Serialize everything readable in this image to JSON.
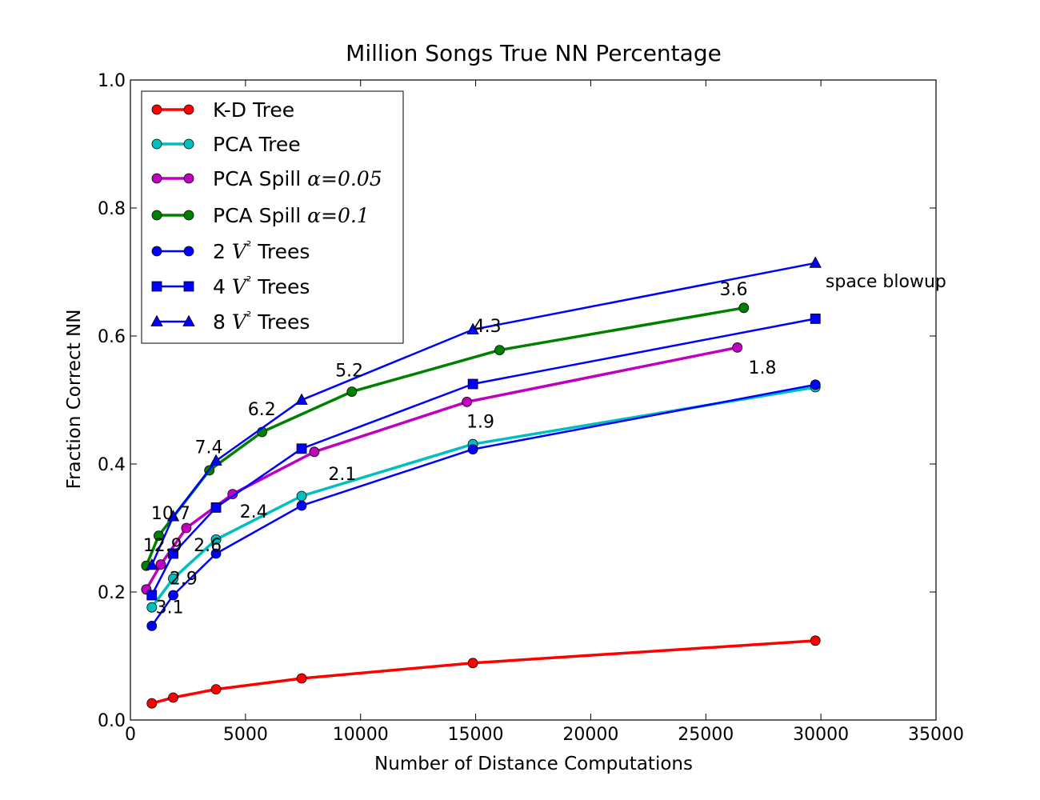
{
  "chart_data": {
    "type": "line",
    "title": "Million Songs True NN Percentage",
    "xlabel": "Number of Distance Computations",
    "ylabel": "Fraction Correct NN",
    "xlim": [
      0,
      35000
    ],
    "ylim": [
      0.0,
      1.0
    ],
    "xticks": [
      0,
      5000,
      10000,
      15000,
      20000,
      25000,
      30000,
      35000
    ],
    "xtick_labels": [
      "0",
      "5000",
      "10000",
      "15000",
      "20000",
      "25000",
      "30000",
      "35000"
    ],
    "yticks": [
      0.0,
      0.2,
      0.4,
      0.6,
      0.8,
      1.0
    ],
    "ytick_labels": [
      "0.0",
      "0.2",
      "0.4",
      "0.6",
      "0.8",
      "1.0"
    ],
    "grid": false,
    "legend_position": "upper-left",
    "series": [
      {
        "name": "K-D Tree",
        "label_parts": [
          "K-D Tree"
        ],
        "color": "#ff0000",
        "marker": "circle",
        "linewidth": 3.5,
        "x": [
          930,
          1860,
          3720,
          7440,
          14880,
          29760
        ],
        "y": [
          0.026,
          0.035,
          0.048,
          0.065,
          0.089,
          0.124
        ]
      },
      {
        "name": "PCA Tree",
        "label_parts": [
          "PCA Tree"
        ],
        "color": "#00bfbf",
        "marker": "circle",
        "linewidth": 3.5,
        "x": [
          930,
          1860,
          3720,
          7440,
          14880,
          29760
        ],
        "y": [
          0.176,
          0.221,
          0.282,
          0.35,
          0.431,
          0.52
        ]
      },
      {
        "name": "PCA Spill α=0.05",
        "label_parts": [
          "PCA Spill ",
          "α",
          "=0.05"
        ],
        "color": "#bf00bf",
        "marker": "circle",
        "linewidth": 3.5,
        "x": [
          690,
          1320,
          2430,
          4440,
          7990,
          14620,
          26370
        ],
        "y": [
          0.204,
          0.243,
          0.3,
          0.353,
          0.419,
          0.497,
          0.582
        ]
      },
      {
        "name": "PCA Spill α=0.1",
        "label_parts": [
          "PCA Spill ",
          "α",
          "=0.1"
        ],
        "color": "#008000",
        "marker": "circle",
        "linewidth": 3.5,
        "x": [
          690,
          1230,
          3430,
          5720,
          9620,
          16040,
          26650
        ],
        "y": [
          0.241,
          0.288,
          0.39,
          0.45,
          0.513,
          0.578,
          0.644
        ]
      },
      {
        "name": "2 V² Trees",
        "label_parts": [
          "2 ",
          "V",
          "²",
          "  Trees"
        ],
        "color": "#0000ff",
        "marker": "circle",
        "linewidth": 2.5,
        "x": [
          930,
          1860,
          3720,
          7440,
          14880,
          29760
        ],
        "y": [
          0.147,
          0.195,
          0.26,
          0.335,
          0.423,
          0.524
        ]
      },
      {
        "name": "4 V² Trees",
        "label_parts": [
          "4 ",
          "V",
          "²",
          "  Trees"
        ],
        "color": "#0000ff",
        "marker": "square",
        "linewidth": 2.5,
        "x": [
          930,
          1860,
          3720,
          7440,
          14880,
          29760
        ],
        "y": [
          0.195,
          0.26,
          0.332,
          0.424,
          0.525,
          0.627
        ]
      },
      {
        "name": "8 V² Trees",
        "label_parts": [
          "8 ",
          "V",
          "²",
          "  Trees"
        ],
        "color": "#0000ff",
        "marker": "triangle",
        "linewidth": 2.5,
        "x": [
          930,
          1860,
          3720,
          7440,
          14880,
          29760
        ],
        "y": [
          0.242,
          0.318,
          0.405,
          0.5,
          0.61,
          0.714
        ]
      }
    ],
    "annotations": [
      {
        "text": "12.9",
        "x": 550,
        "y": 0.264
      },
      {
        "text": "10.7",
        "x": 900,
        "y": 0.314
      },
      {
        "text": "7.4",
        "x": 2800,
        "y": 0.417
      },
      {
        "text": "6.2",
        "x": 5100,
        "y": 0.476
      },
      {
        "text": "5.2",
        "x": 8900,
        "y": 0.537
      },
      {
        "text": "4.3",
        "x": 14900,
        "y": 0.606
      },
      {
        "text": "3.6",
        "x": 25600,
        "y": 0.664
      },
      {
        "text": "space blowup",
        "x": 30200,
        "y": 0.676
      },
      {
        "text": "3.1",
        "x": 1100,
        "y": 0.167
      },
      {
        "text": "2.9",
        "x": 1700,
        "y": 0.212
      },
      {
        "text": "2.6",
        "x": 2750,
        "y": 0.264
      },
      {
        "text": "2.4",
        "x": 4750,
        "y": 0.316
      },
      {
        "text": "2.1",
        "x": 8600,
        "y": 0.375
      },
      {
        "text": "1.9",
        "x": 14600,
        "y": 0.457
      },
      {
        "text": "1.8",
        "x": 26850,
        "y": 0.541
      }
    ]
  }
}
